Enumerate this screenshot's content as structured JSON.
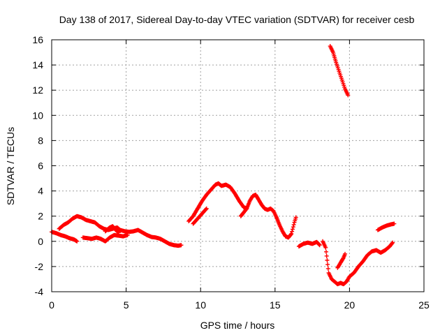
{
  "chart_data": {
    "type": "scatter",
    "title": "Day 138 of 2017, Sidereal Day-to-day VTEC variation (SDTVAR) for receiver cesb",
    "xlabel": "GPS time / hours",
    "ylabel": "SDTVAR / TECUs",
    "xlim": [
      0,
      25
    ],
    "ylim": [
      -4,
      16
    ],
    "xticks": [
      0,
      5,
      10,
      15,
      20,
      25
    ],
    "yticks": [
      -4,
      -2,
      0,
      2,
      4,
      6,
      8,
      10,
      12,
      14,
      16
    ],
    "grid": true,
    "legend": "none",
    "marker": "plus",
    "color": "#ff0000",
    "segments": [
      [
        [
          0.0,
          0.75
        ],
        [
          0.3,
          0.65
        ],
        [
          0.6,
          0.5
        ],
        [
          0.9,
          0.4
        ],
        [
          1.2,
          0.25
        ],
        [
          1.5,
          0.15
        ],
        [
          1.7,
          0.0
        ]
      ],
      [
        [
          0.5,
          1.0
        ],
        [
          0.8,
          1.3
        ],
        [
          1.1,
          1.5
        ],
        [
          1.4,
          1.8
        ],
        [
          1.7,
          2.0
        ],
        [
          2.0,
          1.9
        ],
        [
          2.3,
          1.7
        ],
        [
          2.6,
          1.6
        ],
        [
          2.9,
          1.5
        ],
        [
          3.2,
          1.2
        ],
        [
          3.5,
          1.0
        ],
        [
          3.8,
          0.9
        ],
        [
          4.1,
          1.0
        ],
        [
          4.4,
          1.1
        ],
        [
          4.6,
          0.9
        ],
        [
          4.9,
          0.8
        ],
        [
          5.2,
          0.75
        ],
        [
          5.5,
          0.8
        ],
        [
          5.8,
          0.9
        ],
        [
          6.1,
          0.7
        ],
        [
          6.4,
          0.5
        ],
        [
          6.7,
          0.35
        ],
        [
          7.0,
          0.3
        ],
        [
          7.3,
          0.2
        ],
        [
          7.6,
          0.0
        ],
        [
          7.9,
          -0.2
        ],
        [
          8.2,
          -0.3
        ],
        [
          8.5,
          -0.35
        ],
        [
          8.7,
          -0.3
        ]
      ],
      [
        [
          2.1,
          0.3
        ],
        [
          2.4,
          0.25
        ],
        [
          2.7,
          0.2
        ],
        [
          3.0,
          0.3
        ],
        [
          3.3,
          0.2
        ],
        [
          3.6,
          0.0
        ],
        [
          3.9,
          0.3
        ],
        [
          4.2,
          0.5
        ],
        [
          4.5,
          0.45
        ],
        [
          4.8,
          0.4
        ],
        [
          5.1,
          0.5
        ]
      ],
      [
        [
          3.6,
          0.8
        ],
        [
          3.9,
          1.1
        ],
        [
          4.1,
          1.2
        ],
        [
          4.3,
          0.9
        ],
        [
          4.5,
          0.7
        ]
      ],
      [
        [
          9.2,
          1.6
        ],
        [
          9.5,
          2.0
        ],
        [
          9.8,
          2.6
        ],
        [
          10.1,
          3.2
        ],
        [
          10.4,
          3.7
        ],
        [
          10.7,
          4.1
        ],
        [
          11.0,
          4.5
        ],
        [
          11.2,
          4.6
        ],
        [
          11.4,
          4.4
        ],
        [
          11.7,
          4.5
        ],
        [
          12.0,
          4.3
        ],
        [
          12.3,
          3.8
        ],
        [
          12.6,
          3.2
        ],
        [
          12.9,
          2.7
        ],
        [
          13.1,
          2.6
        ],
        [
          13.3,
          3.2
        ],
        [
          13.5,
          3.6
        ],
        [
          13.7,
          3.7
        ],
        [
          13.9,
          3.3
        ],
        [
          14.1,
          2.9
        ],
        [
          14.3,
          2.6
        ],
        [
          14.5,
          2.5
        ],
        [
          14.7,
          2.6
        ],
        [
          14.9,
          2.4
        ],
        [
          15.1,
          1.9
        ],
        [
          15.3,
          1.3
        ],
        [
          15.5,
          0.8
        ],
        [
          15.7,
          0.4
        ],
        [
          15.9,
          0.3
        ],
        [
          16.1,
          0.6
        ],
        [
          16.3,
          1.5
        ],
        [
          16.4,
          1.9
        ]
      ],
      [
        [
          9.5,
          1.4
        ],
        [
          9.8,
          1.8
        ],
        [
          10.1,
          2.2
        ],
        [
          10.4,
          2.6
        ]
      ],
      [
        [
          12.7,
          2.0
        ],
        [
          12.9,
          2.3
        ],
        [
          13.1,
          2.6
        ]
      ],
      [
        [
          16.6,
          -0.4
        ],
        [
          16.9,
          -0.2
        ],
        [
          17.2,
          -0.1
        ],
        [
          17.5,
          -0.2
        ],
        [
          17.8,
          -0.05
        ],
        [
          18.0,
          -0.3
        ]
      ],
      [
        [
          18.2,
          0.0
        ],
        [
          18.4,
          -0.5
        ],
        [
          18.5,
          -1.5
        ],
        [
          18.6,
          -2.5
        ],
        [
          18.8,
          -3.0
        ],
        [
          19.0,
          -3.2
        ],
        [
          19.2,
          -3.4
        ],
        [
          19.4,
          -3.3
        ],
        [
          19.6,
          -3.4
        ],
        [
          19.8,
          -3.2
        ],
        [
          20.0,
          -2.8
        ],
        [
          20.3,
          -2.5
        ],
        [
          20.6,
          -2.0
        ],
        [
          20.9,
          -1.6
        ],
        [
          21.2,
          -1.1
        ],
        [
          21.5,
          -0.8
        ],
        [
          21.8,
          -0.7
        ],
        [
          22.1,
          -0.9
        ],
        [
          22.4,
          -0.7
        ],
        [
          22.7,
          -0.4
        ],
        [
          22.9,
          -0.1
        ]
      ],
      [
        [
          19.2,
          -2.1
        ],
        [
          19.4,
          -1.7
        ],
        [
          19.6,
          -1.3
        ],
        [
          19.7,
          -1.0
        ]
      ],
      [
        [
          18.7,
          15.5
        ],
        [
          18.9,
          15.0
        ],
        [
          19.1,
          14.2
        ],
        [
          19.3,
          13.5
        ],
        [
          19.5,
          12.8
        ],
        [
          19.7,
          12.1
        ],
        [
          19.9,
          11.6
        ]
      ],
      [
        [
          21.9,
          0.9
        ],
        [
          22.2,
          1.1
        ],
        [
          22.5,
          1.25
        ],
        [
          22.8,
          1.35
        ],
        [
          23.0,
          1.4
        ]
      ]
    ]
  }
}
